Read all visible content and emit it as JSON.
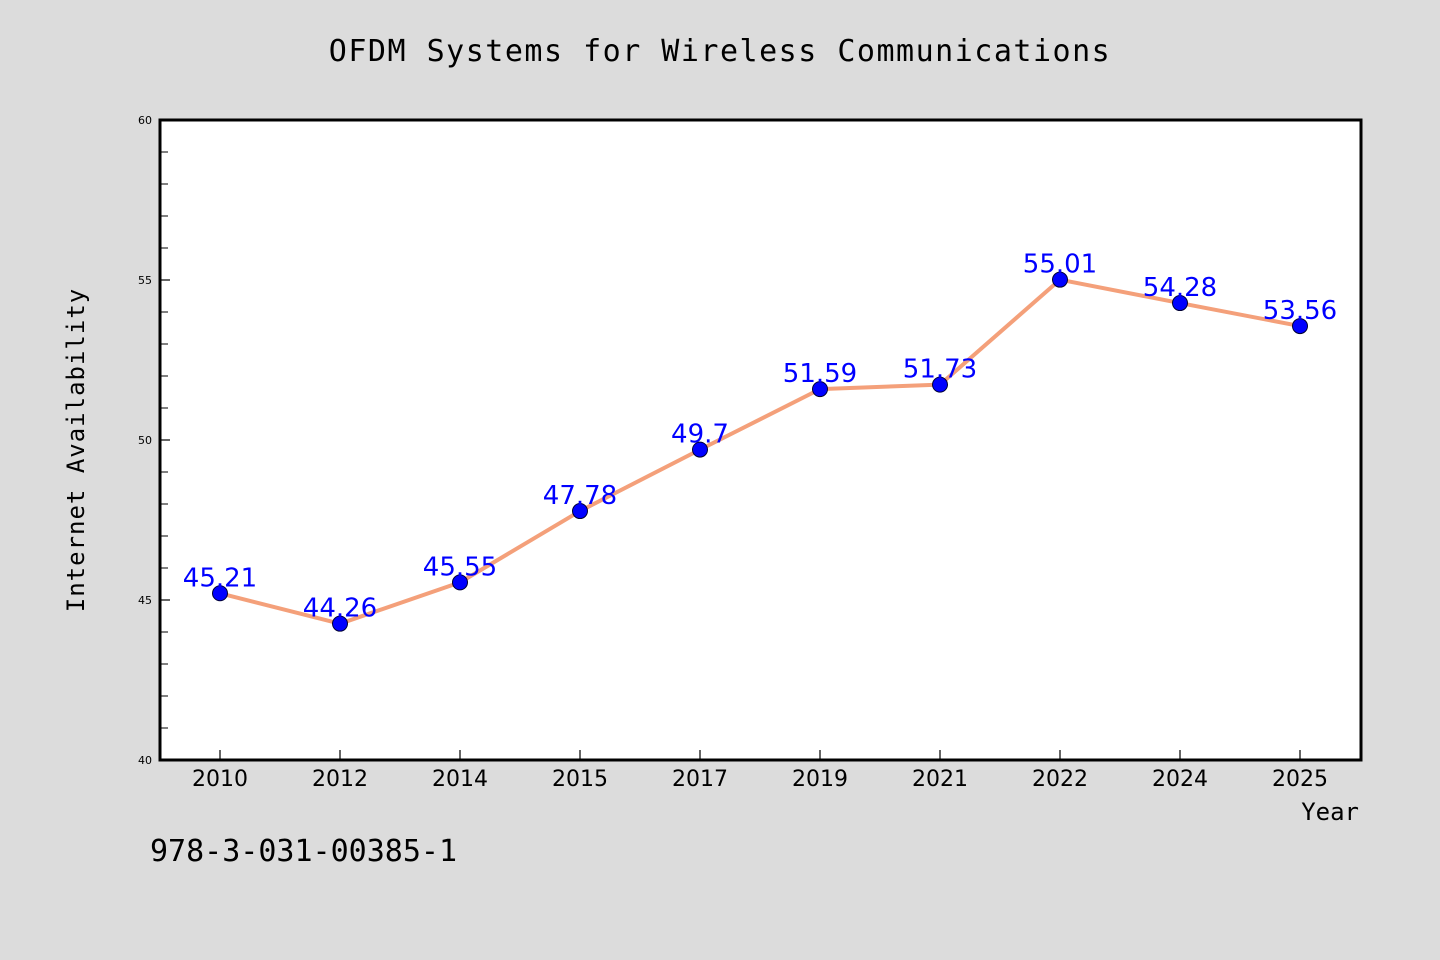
{
  "chart_data": {
    "type": "line",
    "title": "OFDM Systems for Wireless Communications",
    "xlabel": "Year",
    "ylabel": "Internet Availability",
    "categories": [
      "2010",
      "2012",
      "2014",
      "2015",
      "2017",
      "2019",
      "2021",
      "2022",
      "2024",
      "2025"
    ],
    "series": [
      {
        "values": [
          45.21,
          44.26,
          45.55,
          47.78,
          49.7,
          51.59,
          51.73,
          55.01,
          54.28,
          53.56
        ],
        "data_labels": [
          "45.21",
          "44.26",
          "45.55",
          "47.78",
          "49.7",
          "51.59",
          "51.73",
          "55.01",
          "54.28",
          "53.56"
        ]
      }
    ],
    "ylim": [
      40,
      60
    ],
    "y_ticks": [
      "40",
      "45",
      "50",
      "55",
      "60"
    ],
    "grid": false,
    "line_color": "#f4a07a",
    "marker_color": "#0000ff",
    "label_color": "#0000ff"
  },
  "footer": {
    "text": "978-3-031-00385-1"
  },
  "colors": {
    "background": "#dcdcdc",
    "plot_background": "#ffffff"
  }
}
